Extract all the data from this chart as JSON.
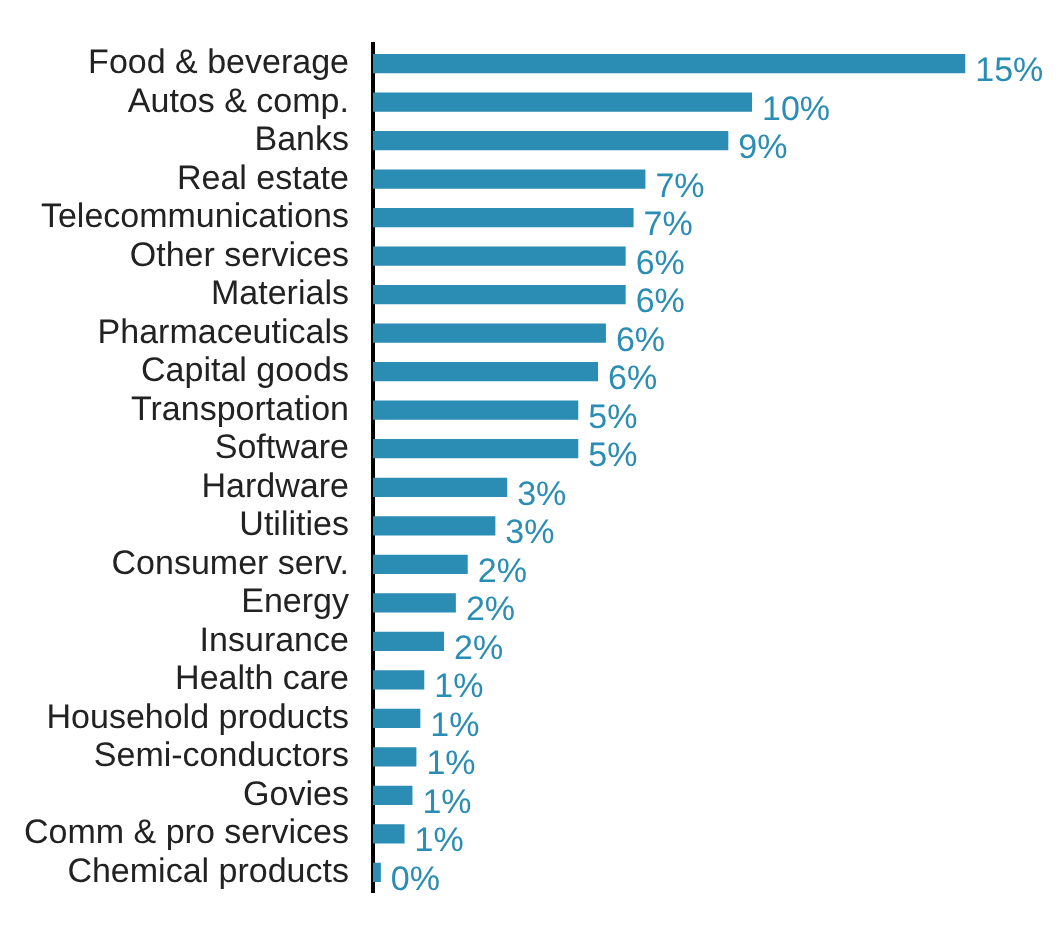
{
  "chart_data": {
    "type": "bar",
    "orientation": "horizontal",
    "categories": [
      "Food & beverage",
      "Autos & comp.",
      "Banks",
      "Real estate",
      "Telecommunications",
      "Other services",
      "Materials",
      "Pharmaceuticals",
      "Capital goods",
      "Transportation",
      "Software",
      "Hardware",
      "Utilities",
      "Consumer serv.",
      "Energy",
      "Insurance",
      "Health care",
      "Household products",
      "Semi-conductors",
      "Govies",
      "Comm & pro services",
      "Chemical products"
    ],
    "values": [
      15.0,
      9.6,
      9.0,
      6.9,
      6.6,
      6.4,
      6.4,
      5.9,
      5.7,
      5.2,
      5.2,
      3.4,
      3.1,
      2.4,
      2.1,
      1.8,
      1.3,
      1.2,
      1.1,
      1.0,
      0.8,
      0.2
    ],
    "value_labels": [
      "15%",
      "10%",
      "9%",
      "7%",
      "7%",
      "6%",
      "6%",
      "6%",
      "6%",
      "5%",
      "5%",
      "3%",
      "3%",
      "2%",
      "2%",
      "2%",
      "1%",
      "1%",
      "1%",
      "1%",
      "1%",
      "0%"
    ],
    "color": "#2b8db3"
  }
}
